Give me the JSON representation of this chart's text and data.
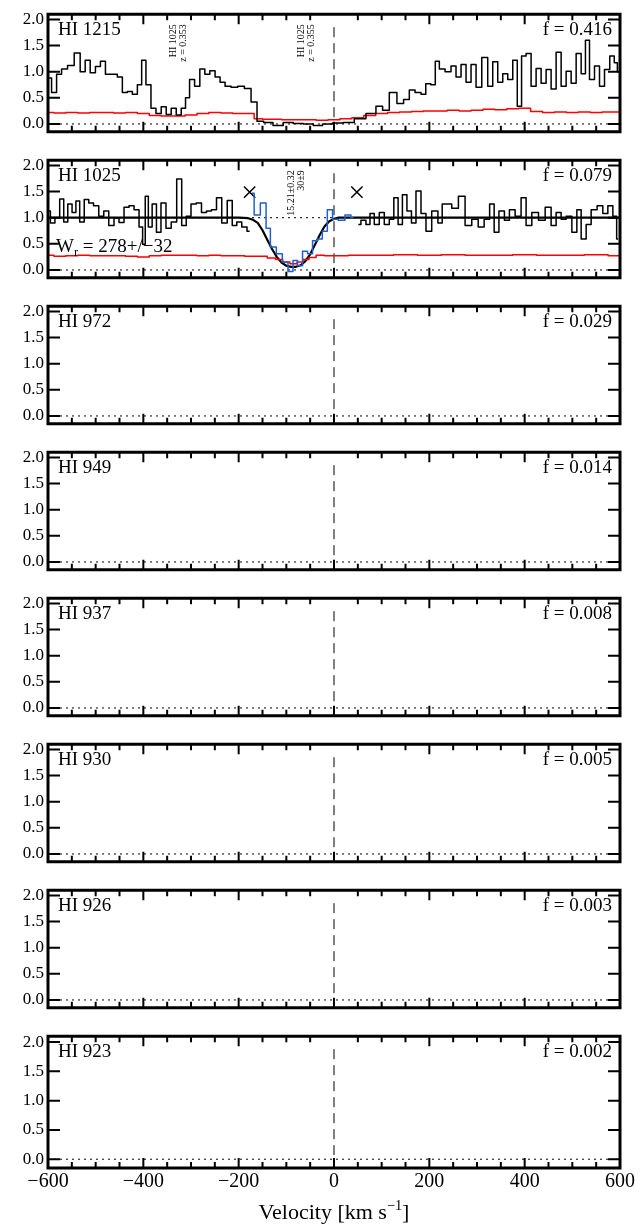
{
  "chart_data": [
    {
      "type": "step",
      "title": "HI 1215",
      "annotations": [
        "f = 0.416",
        "HI 1025\nz = 0.353",
        "HI 1025\nz = 0.355"
      ],
      "series": [
        {
          "color": "#000000",
          "x": [
            -598,
            -587,
            -577,
            -566,
            -552,
            -538,
            -527,
            -517,
            -506,
            -495,
            -485,
            -474,
            -460,
            -449,
            -439,
            -428,
            -418,
            -407,
            -400,
            -389,
            -379,
            -368,
            -357,
            -347,
            -336,
            -326,
            -315,
            -308,
            -298,
            -287,
            -276,
            -266,
            -255,
            -244,
            -234,
            -223,
            -209,
            -195,
            -181,
            -167,
            -156,
            -139,
            -117,
            -96,
            -75,
            -54,
            -33,
            -15,
            9,
            30,
            55,
            79,
            97,
            107,
            125,
            139,
            153,
            163,
            177,
            188,
            197,
            209,
            216,
            226,
            240,
            251,
            261,
            272,
            282,
            293,
            303,
            317,
            328,
            338,
            349,
            359,
            370,
            380,
            389,
            398,
            408,
            419,
            429,
            440,
            450,
            461,
            471,
            482,
            492,
            503,
            513,
            524,
            531,
            541,
            552,
            562,
            573,
            584,
            592,
            597
          ],
          "values": [
            0.88,
            0.6,
            0.95,
            1.05,
            1.12,
            1.36,
            1.0,
            1.22,
            0.98,
            1.1,
            1.2,
            0.95,
            0.95,
            0.9,
            0.6,
            0.62,
            0.57,
            0.75,
            1.22,
            0.75,
            0.3,
            0.2,
            0.33,
            0.18,
            0.3,
            0.17,
            0.3,
            0.5,
            0.85,
            0.72,
            1.05,
            0.95,
            1.02,
            0.9,
            0.8,
            0.72,
            0.7,
            0.72,
            0.68,
            0.42,
            0.05,
            0.03,
            -0.03,
            0.03,
            0.01,
            0.0,
            -0.03,
            0.0,
            0.02,
            0.03,
            0.1,
            0.2,
            0.34,
            0.26,
            0.6,
            0.39,
            0.47,
            0.65,
            0.6,
            0.57,
            0.77,
            0.75,
            1.2,
            1.05,
            1.0,
            1.11,
            0.9,
            1.14,
            0.8,
            1.14,
            0.7,
            1.27,
            0.72,
            1.19,
            0.8,
            0.96,
            0.85,
            1.22,
            0.34,
            1.3,
            1.35,
            0.72,
            1.06,
            0.78,
            1.04,
            0.67,
            1.37,
            0.72,
            1.01,
            0.78,
            1.35,
            0.96,
            1.6,
            0.85,
            1.11,
            0.72,
            1.04,
            1.3,
            1.17,
            1.0
          ]
        },
        {
          "color": "#ff0000",
          "x": [
            -600,
            -575,
            -550,
            -525,
            -500,
            -475,
            -450,
            -425,
            -400,
            -375,
            -350,
            -325,
            -300,
            -275,
            -250,
            -225,
            -200,
            -175,
            -160,
            -140,
            -120,
            -100,
            -75,
            -50,
            -25,
            0,
            25,
            50,
            75,
            100,
            125,
            150,
            175,
            200,
            225,
            250,
            275,
            300,
            325,
            350,
            375,
            400,
            425,
            450,
            475,
            500,
            525,
            550,
            575,
            600
          ],
          "values": [
            0.22,
            0.21,
            0.22,
            0.21,
            0.22,
            0.22,
            0.21,
            0.22,
            0.2,
            0.16,
            0.15,
            0.15,
            0.17,
            0.2,
            0.22,
            0.21,
            0.2,
            0.2,
            0.1,
            0.09,
            0.09,
            0.08,
            0.08,
            0.08,
            0.07,
            0.08,
            0.1,
            0.12,
            0.16,
            0.2,
            0.22,
            0.23,
            0.24,
            0.25,
            0.25,
            0.26,
            0.25,
            0.26,
            0.28,
            0.27,
            0.29,
            0.3,
            0.24,
            0.22,
            0.23,
            0.22,
            0.23,
            0.22,
            0.23,
            0.23
          ]
        }
      ],
      "xlim": [
        -600,
        600
      ],
      "ylim": [
        -0.15,
        2.1
      ],
      "xticks": [
        -600,
        {
          "value": -550,
          "label": null
        },
        {
          "value": -500,
          "label": null
        },
        {
          "value": -450,
          "label": null
        },
        -400,
        {
          "value": -350,
          "label": null
        },
        {
          "value": -300,
          "label": null
        },
        {
          "value": -250,
          "label": null
        },
        -200,
        {
          "value": -150,
          "label": null
        },
        {
          "value": -100,
          "label": null
        },
        {
          "value": -50,
          "label": null
        },
        0,
        {
          "value": 50,
          "label": null
        },
        {
          "value": 100,
          "label": null
        },
        {
          "value": 150,
          "label": null
        },
        200,
        {
          "value": 250,
          "label": null
        },
        {
          "value": 300,
          "label": null
        },
        {
          "value": 350,
          "label": null
        },
        400,
        {
          "value": 450,
          "label": null
        },
        {
          "value": 500,
          "label": null
        },
        {
          "value": 550,
          "label": null
        },
        600
      ],
      "yticks": [
        {
          "value": 0,
          "label": "0.0"
        },
        {
          "value": 0.5,
          "label": "0.5"
        },
        {
          "value": 1,
          "label": "1.0"
        },
        {
          "value": 1.5,
          "label": "1.5"
        },
        {
          "value": 2,
          "label": "2.0"
        }
      ],
      "ref_lines": [
        {
          "axis": "x",
          "value": 0,
          "line_style": "dashed"
        },
        {
          "axis": "y",
          "value": 0,
          "line_style": "dotted"
        }
      ],
      "tick_labels": "y"
    },
    {
      "type": "step",
      "title": "HI 1025",
      "annotations": [
        "f = 0.079",
        "W$_{r}$ = 278+/−32",
        "15.21±0.32\n30±9"
      ],
      "series": [
        {
          "color": "#000000",
          "x": [
            -599,
            -591,
            -580,
            -571,
            -563,
            -554,
            -545,
            -538,
            -529,
            -519,
            -510,
            -499,
            -488,
            -478,
            -467,
            -456,
            -446,
            -435,
            -425,
            -414,
            -404,
            -399,
            -393,
            -386,
            -377,
            -368,
            -358,
            -347,
            -336,
            -324,
            -315,
            -305,
            -295,
            -283,
            -273,
            -262,
            -252,
            -241,
            -230,
            -218,
            -209,
            -199,
            -188,
            -177
          ],
          "values": [
            1.13,
            0.9,
            1.0,
            1.36,
            0.92,
            1.26,
            1.1,
            1.32,
            0.92,
            1.35,
            1.28,
            1.23,
            1.03,
            1.13,
            0.85,
            1.0,
            0.91,
            1.2,
            1.23,
            1.15,
            0.82,
            0.49,
            1.41,
            0.82,
            1.26,
            0.72,
            1.28,
            0.8,
            0.92,
            1.74,
            0.85,
            1.03,
            1.26,
            1.28,
            1.1,
            1.13,
            1.15,
            1.38,
            0.9,
            1.33,
            0.85,
            0.92,
            0.82,
            0.74
          ]
        },
        {
          "color": "#1f5fcf",
          "x": [
            -172,
            -163,
            -146,
            -139,
            -128,
            -114,
            -103,
            -90,
            -82,
            -71,
            -61,
            -50,
            -40,
            -29,
            -20,
            -8,
            2,
            16,
            30,
            41
          ],
          "values": [
            1.47,
            1.05,
            1.28,
            0.8,
            0.44,
            0.31,
            0.15,
            -0.03,
            0.18,
            0.08,
            0.36,
            0.31,
            0.56,
            0.59,
            0.74,
            1.15,
            0.97,
            0.95,
            1.05,
            1.0
          ]
        },
        {
          "color": "#000000",
          "x": [
            51,
            62,
            72,
            79,
            90,
            100,
            111,
            121,
            130,
            139,
            148,
            158,
            167,
            177,
            188,
            198,
            212,
            224,
            230,
            240,
            254,
            268,
            282,
            296,
            309,
            321,
            332,
            340,
            352,
            363,
            373,
            387,
            398,
            408,
            422,
            436,
            450,
            461,
            471,
            482,
            492,
            506,
            513,
            524,
            534,
            545,
            559,
            569,
            580,
            590,
            596
          ],
          "values": [
            0.87,
            0.95,
            0.87,
            1.08,
            0.87,
            1.1,
            0.87,
            0.97,
            1.38,
            0.87,
            1.44,
            1.13,
            0.9,
            1.51,
            1.08,
            0.74,
            1.13,
            0.9,
            1.26,
            1.26,
            1.18,
            1.41,
            0.85,
            0.97,
            0.82,
            0.97,
            1.26,
            0.72,
            1.13,
            0.95,
            1.15,
            1.03,
            1.38,
            0.85,
            1.1,
            0.95,
            1.2,
            0.85,
            1.1,
            0.97,
            1.03,
            0.72,
            1.15,
            0.59,
            0.87,
            1.15,
            1.23,
            1.08,
            1.23,
            1.03,
            0.59
          ]
        },
        {
          "color": "#ff0000",
          "x": [
            -600,
            -575,
            -550,
            -525,
            -500,
            -475,
            -450,
            -425,
            -400,
            -375,
            -350,
            -325,
            -300,
            -275,
            -250,
            -225,
            -200,
            -175,
            -150,
            -130,
            -115,
            -100,
            -85,
            -70,
            -60,
            -45,
            -30,
            -10,
            10,
            50,
            100,
            150,
            200,
            250,
            300,
            350,
            400,
            450,
            500,
            550,
            600
          ],
          "values": [
            0.28,
            0.26,
            0.27,
            0.28,
            0.27,
            0.27,
            0.27,
            0.26,
            0.25,
            0.27,
            0.28,
            0.28,
            0.28,
            0.27,
            0.28,
            0.27,
            0.27,
            0.26,
            0.26,
            0.23,
            0.2,
            0.15,
            0.12,
            0.15,
            0.2,
            0.24,
            0.28,
            0.27,
            0.27,
            0.28,
            0.28,
            0.29,
            0.28,
            0.29,
            0.28,
            0.28,
            0.29,
            0.28,
            0.28,
            0.29,
            0.27
          ]
        },
        {
          "type": "line",
          "color": "#000000",
          "x": [
            -600,
            -200,
            -180,
            -170,
            -160,
            -150,
            -140,
            -130,
            -120,
            -110,
            -100,
            -90,
            -80,
            -70,
            -60,
            -50,
            -40,
            -30,
            -20,
            -10,
            0,
            10,
            600
          ],
          "values": [
            1,
            1,
            0.99,
            0.96,
            0.9,
            0.76,
            0.58,
            0.4,
            0.25,
            0.14,
            0.08,
            0.06,
            0.06,
            0.09,
            0.17,
            0.3,
            0.48,
            0.67,
            0.83,
            0.93,
            0.98,
            1,
            1
          ]
        },
        {
          "type": "scatter",
          "marker": "cross",
          "color": "#000000",
          "x": [
            -177,
            48
          ],
          "values": [
            1.49,
            1.49
          ]
        }
      ],
      "xlim": [
        -600,
        600
      ],
      "ylim": [
        -0.15,
        2.1
      ],
      "xticks": [
        -600,
        {
          "value": -550,
          "label": null
        },
        {
          "value": -500,
          "label": null
        },
        {
          "value": -450,
          "label": null
        },
        -400,
        {
          "value": -350,
          "label": null
        },
        {
          "value": -300,
          "label": null
        },
        {
          "value": -250,
          "label": null
        },
        -200,
        {
          "value": -150,
          "label": null
        },
        {
          "value": -100,
          "label": null
        },
        {
          "value": -50,
          "label": null
        },
        0,
        {
          "value": 50,
          "label": null
        },
        {
          "value": 100,
          "label": null
        },
        {
          "value": 150,
          "label": null
        },
        200,
        {
          "value": 250,
          "label": null
        },
        {
          "value": 300,
          "label": null
        },
        {
          "value": 350,
          "label": null
        },
        400,
        {
          "value": 450,
          "label": null
        },
        {
          "value": 500,
          "label": null
        },
        {
          "value": 550,
          "label": null
        },
        600
      ],
      "yticks": [
        {
          "value": 0,
          "label": "0.0"
        },
        {
          "value": 0.5,
          "label": "0.5"
        },
        {
          "value": 1,
          "label": "1.0"
        },
        {
          "value": 1.5,
          "label": "1.5"
        },
        {
          "value": 2,
          "label": "2.0"
        }
      ],
      "ref_lines": [
        {
          "axis": "x",
          "value": 0,
          "line_style": "dashed"
        },
        {
          "axis": "y",
          "value": 0,
          "line_style": "dotted"
        },
        {
          "axis": "y",
          "value": 1,
          "line_style": "dotted"
        }
      ],
      "tick_labels": "y"
    },
    {
      "type": "step",
      "title": "HI 972",
      "annotations": [
        "f = 0.029"
      ],
      "xlim": [
        -600,
        600
      ],
      "ylim": [
        -0.15,
        2.1
      ],
      "xticks": [
        -600,
        {
          "value": -550,
          "label": null
        },
        {
          "value": -500,
          "label": null
        },
        {
          "value": -450,
          "label": null
        },
        -400,
        {
          "value": -350,
          "label": null
        },
        {
          "value": -300,
          "label": null
        },
        {
          "value": -250,
          "label": null
        },
        -200,
        {
          "value": -150,
          "label": null
        },
        {
          "value": -100,
          "label": null
        },
        {
          "value": -50,
          "label": null
        },
        0,
        {
          "value": 50,
          "label": null
        },
        {
          "value": 100,
          "label": null
        },
        {
          "value": 150,
          "label": null
        },
        200,
        {
          "value": 250,
          "label": null
        },
        {
          "value": 300,
          "label": null
        },
        {
          "value": 350,
          "label": null
        },
        400,
        {
          "value": 450,
          "label": null
        },
        {
          "value": 500,
          "label": null
        },
        {
          "value": 550,
          "label": null
        },
        600
      ],
      "yticks": [
        {
          "value": 0,
          "label": "0.0"
        },
        {
          "value": 0.5,
          "label": "0.5"
        },
        {
          "value": 1,
          "label": "1.0"
        },
        {
          "value": 1.5,
          "label": "1.5"
        },
        {
          "value": 2,
          "label": "2.0"
        }
      ],
      "ref_lines": [
        {
          "axis": "x",
          "value": 0,
          "line_style": "dashed"
        },
        {
          "axis": "y",
          "value": 0,
          "line_style": "dotted"
        }
      ],
      "tick_labels": "y"
    },
    {
      "type": "step",
      "title": "HI 949",
      "annotations": [
        "f = 0.014"
      ],
      "xlim": [
        -600,
        600
      ],
      "ylim": [
        -0.15,
        2.1
      ],
      "xticks": [
        -600,
        {
          "value": -550,
          "label": null
        },
        {
          "value": -500,
          "label": null
        },
        {
          "value": -450,
          "label": null
        },
        -400,
        {
          "value": -350,
          "label": null
        },
        {
          "value": -300,
          "label": null
        },
        {
          "value": -250,
          "label": null
        },
        -200,
        {
          "value": -150,
          "label": null
        },
        {
          "value": -100,
          "label": null
        },
        {
          "value": -50,
          "label": null
        },
        0,
        {
          "value": 50,
          "label": null
        },
        {
          "value": 100,
          "label": null
        },
        {
          "value": 150,
          "label": null
        },
        200,
        {
          "value": 250,
          "label": null
        },
        {
          "value": 300,
          "label": null
        },
        {
          "value": 350,
          "label": null
        },
        400,
        {
          "value": 450,
          "label": null
        },
        {
          "value": 500,
          "label": null
        },
        {
          "value": 550,
          "label": null
        },
        600
      ],
      "yticks": [
        {
          "value": 0,
          "label": "0.0"
        },
        {
          "value": 0.5,
          "label": "0.5"
        },
        {
          "value": 1,
          "label": "1.0"
        },
        {
          "value": 1.5,
          "label": "1.5"
        },
        {
          "value": 2,
          "label": "2.0"
        }
      ],
      "ref_lines": [
        {
          "axis": "x",
          "value": 0,
          "line_style": "dashed"
        },
        {
          "axis": "y",
          "value": 0,
          "line_style": "dotted"
        }
      ],
      "tick_labels": "y"
    },
    {
      "type": "step",
      "title": "HI 937",
      "annotations": [
        "f = 0.008"
      ],
      "xlim": [
        -600,
        600
      ],
      "ylim": [
        -0.15,
        2.1
      ],
      "xticks": [
        -600,
        {
          "value": -550,
          "label": null
        },
        {
          "value": -500,
          "label": null
        },
        {
          "value": -450,
          "label": null
        },
        -400,
        {
          "value": -350,
          "label": null
        },
        {
          "value": -300,
          "label": null
        },
        {
          "value": -250,
          "label": null
        },
        -200,
        {
          "value": -150,
          "label": null
        },
        {
          "value": -100,
          "label": null
        },
        {
          "value": -50,
          "label": null
        },
        0,
        {
          "value": 50,
          "label": null
        },
        {
          "value": 100,
          "label": null
        },
        {
          "value": 150,
          "label": null
        },
        200,
        {
          "value": 250,
          "label": null
        },
        {
          "value": 300,
          "label": null
        },
        {
          "value": 350,
          "label": null
        },
        400,
        {
          "value": 450,
          "label": null
        },
        {
          "value": 500,
          "label": null
        },
        {
          "value": 550,
          "label": null
        },
        600
      ],
      "yticks": [
        {
          "value": 0,
          "label": "0.0"
        },
        {
          "value": 0.5,
          "label": "0.5"
        },
        {
          "value": 1,
          "label": "1.0"
        },
        {
          "value": 1.5,
          "label": "1.5"
        },
        {
          "value": 2,
          "label": "2.0"
        }
      ],
      "ref_lines": [
        {
          "axis": "x",
          "value": 0,
          "line_style": "dashed"
        },
        {
          "axis": "y",
          "value": 0,
          "line_style": "dotted"
        }
      ],
      "tick_labels": "y"
    },
    {
      "type": "step",
      "title": "HI 930",
      "annotations": [
        "f = 0.005"
      ],
      "xlim": [
        -600,
        600
      ],
      "ylim": [
        -0.15,
        2.1
      ],
      "xticks": [
        -600,
        {
          "value": -550,
          "label": null
        },
        {
          "value": -500,
          "label": null
        },
        {
          "value": -450,
          "label": null
        },
        -400,
        {
          "value": -350,
          "label": null
        },
        {
          "value": -300,
          "label": null
        },
        {
          "value": -250,
          "label": null
        },
        -200,
        {
          "value": -150,
          "label": null
        },
        {
          "value": -100,
          "label": null
        },
        {
          "value": -50,
          "label": null
        },
        0,
        {
          "value": 50,
          "label": null
        },
        {
          "value": 100,
          "label": null
        },
        {
          "value": 150,
          "label": null
        },
        200,
        {
          "value": 250,
          "label": null
        },
        {
          "value": 300,
          "label": null
        },
        {
          "value": 350,
          "label": null
        },
        400,
        {
          "value": 450,
          "label": null
        },
        {
          "value": 500,
          "label": null
        },
        {
          "value": 550,
          "label": null
        },
        600
      ],
      "yticks": [
        {
          "value": 0,
          "label": "0.0"
        },
        {
          "value": 0.5,
          "label": "0.5"
        },
        {
          "value": 1,
          "label": "1.0"
        },
        {
          "value": 1.5,
          "label": "1.5"
        },
        {
          "value": 2,
          "label": "2.0"
        }
      ],
      "ref_lines": [
        {
          "axis": "x",
          "value": 0,
          "line_style": "dashed"
        },
        {
          "axis": "y",
          "value": 0,
          "line_style": "dotted"
        }
      ],
      "tick_labels": "y"
    },
    {
      "type": "step",
      "title": "HI 926",
      "annotations": [
        "f = 0.003"
      ],
      "xlim": [
        -600,
        600
      ],
      "ylim": [
        -0.15,
        2.1
      ],
      "xticks": [
        -600,
        {
          "value": -550,
          "label": null
        },
        {
          "value": -500,
          "label": null
        },
        {
          "value": -450,
          "label": null
        },
        -400,
        {
          "value": -350,
          "label": null
        },
        {
          "value": -300,
          "label": null
        },
        {
          "value": -250,
          "label": null
        },
        -200,
        {
          "value": -150,
          "label": null
        },
        {
          "value": -100,
          "label": null
        },
        {
          "value": -50,
          "label": null
        },
        0,
        {
          "value": 50,
          "label": null
        },
        {
          "value": 100,
          "label": null
        },
        {
          "value": 150,
          "label": null
        },
        200,
        {
          "value": 250,
          "label": null
        },
        {
          "value": 300,
          "label": null
        },
        {
          "value": 350,
          "label": null
        },
        400,
        {
          "value": 450,
          "label": null
        },
        {
          "value": 500,
          "label": null
        },
        {
          "value": 550,
          "label": null
        },
        600
      ],
      "yticks": [
        {
          "value": 0,
          "label": "0.0"
        },
        {
          "value": 0.5,
          "label": "0.5"
        },
        {
          "value": 1,
          "label": "1.0"
        },
        {
          "value": 1.5,
          "label": "1.5"
        },
        {
          "value": 2,
          "label": "2.0"
        }
      ],
      "ref_lines": [
        {
          "axis": "x",
          "value": 0,
          "line_style": "dashed"
        },
        {
          "axis": "y",
          "value": 0,
          "line_style": "dotted"
        }
      ],
      "tick_labels": "y"
    },
    {
      "type": "step",
      "title": "HI 923",
      "annotations": [
        "f = 0.002"
      ],
      "xlim": [
        -600,
        600
      ],
      "ylim": [
        -0.15,
        2.1
      ],
      "xlabel": "Velocity [km s$^{−1}$]",
      "xticks": [
        {
          "value": -600,
          "label": "−600"
        },
        {
          "value": -550,
          "label": null
        },
        {
          "value": -500,
          "label": null
        },
        {
          "value": -450,
          "label": null
        },
        {
          "value": -400,
          "label": "−400"
        },
        {
          "value": -350,
          "label": null
        },
        {
          "value": -300,
          "label": null
        },
        {
          "value": -250,
          "label": null
        },
        {
          "value": -200,
          "label": "−200"
        },
        {
          "value": -150,
          "label": null
        },
        {
          "value": -100,
          "label": null
        },
        {
          "value": -50,
          "label": null
        },
        {
          "value": 0,
          "label": "0"
        },
        {
          "value": 50,
          "label": null
        },
        {
          "value": 100,
          "label": null
        },
        {
          "value": 150,
          "label": null
        },
        {
          "value": 200,
          "label": "200"
        },
        {
          "value": 250,
          "label": null
        },
        {
          "value": 300,
          "label": null
        },
        {
          "value": 350,
          "label": null
        },
        {
          "value": 400,
          "label": "400"
        },
        {
          "value": 450,
          "label": null
        },
        {
          "value": 500,
          "label": null
        },
        {
          "value": 550,
          "label": null
        },
        {
          "value": 600,
          "label": "600"
        }
      ],
      "yticks": [
        {
          "value": 0,
          "label": "0.0"
        },
        {
          "value": 0.5,
          "label": "0.5"
        },
        {
          "value": 1,
          "label": "1.0"
        },
        {
          "value": 1.5,
          "label": "1.5"
        },
        {
          "value": 2,
          "label": "2.0"
        }
      ],
      "ref_lines": [
        {
          "axis": "x",
          "value": 0,
          "line_style": "dashed"
        },
        {
          "axis": "y",
          "value": 0,
          "line_style": "dotted"
        }
      ]
    }
  ]
}
